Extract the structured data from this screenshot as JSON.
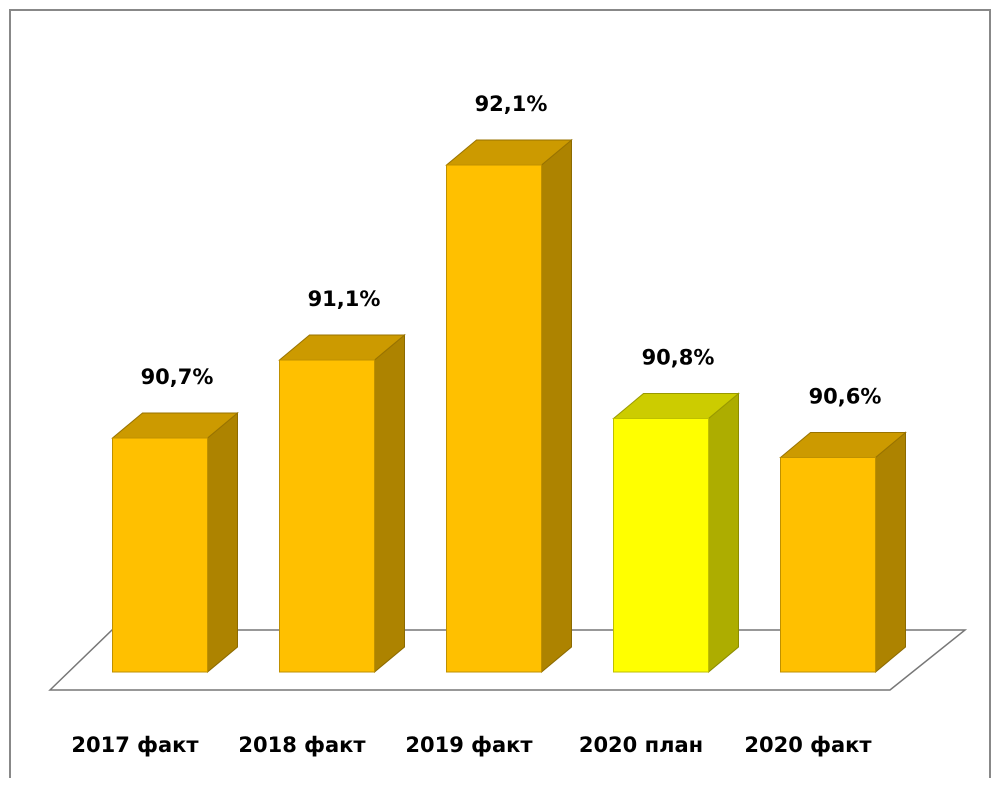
{
  "chart_data": {
    "type": "bar3d",
    "categories": [
      "2017 факт",
      "2018 факт",
      "2019 факт",
      "2020 план",
      "2020 факт"
    ],
    "values": [
      90.7,
      91.1,
      92.1,
      90.8,
      90.6
    ],
    "value_labels": [
      "90,7%",
      "91,1%",
      "92,1%",
      "90,8%",
      "90,6%"
    ],
    "colors": [
      "#ffc000",
      "#ffc000",
      "#ffc000",
      "#ffff00",
      "#ffc000"
    ],
    "ylim": [
      89.5,
      92.5
    ]
  }
}
